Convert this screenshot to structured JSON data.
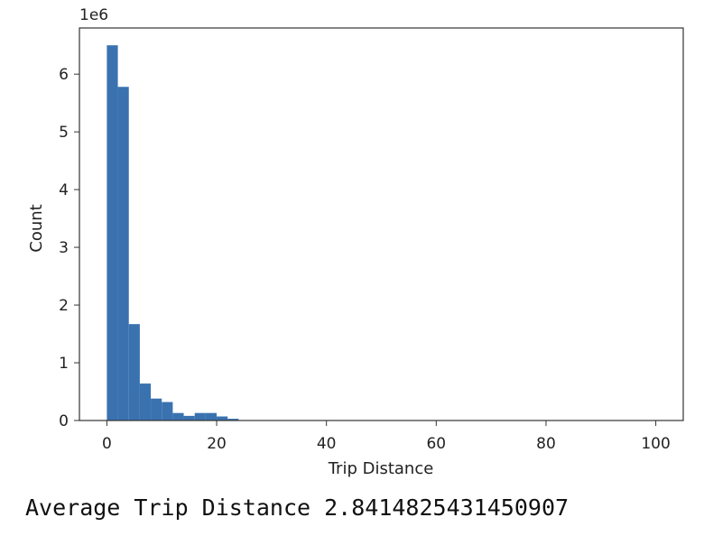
{
  "chart_data": {
    "type": "bar",
    "histogram": true,
    "title": "",
    "xlabel": "Trip Distance",
    "ylabel": "Count",
    "y_offset_label": "1e6",
    "xlim": [
      -5,
      105
    ],
    "ylim": [
      0,
      6.8
    ],
    "xticks": [
      0,
      20,
      40,
      60,
      80,
      100
    ],
    "yticks": [
      0,
      1,
      2,
      3,
      4,
      5,
      6
    ],
    "bin_width": 2,
    "bins_start": [
      0,
      2,
      4,
      6,
      8,
      10,
      12,
      14,
      16,
      18,
      20,
      22
    ],
    "values": [
      6.5,
      5.78,
      1.67,
      0.64,
      0.38,
      0.32,
      0.13,
      0.08,
      0.13,
      0.13,
      0.07,
      0.03
    ],
    "bar_color": "#3a72b0",
    "grid": false
  },
  "output": {
    "text": "Average Trip Distance 2.8414825431450907"
  }
}
